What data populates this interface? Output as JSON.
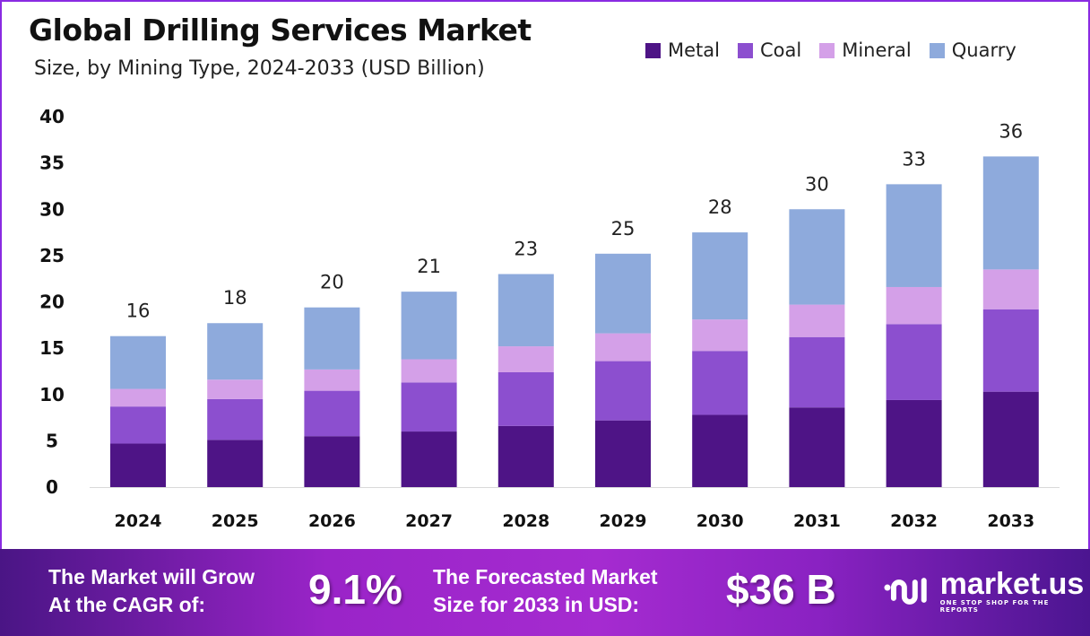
{
  "chart_data": {
    "type": "bar",
    "stacked": true,
    "title": "Global Drilling Services Market",
    "subtitle": "Size, by Mining Type, 2024-2033 (USD Billion)",
    "categories": [
      "2024",
      "2025",
      "2026",
      "2027",
      "2028",
      "2029",
      "2030",
      "2031",
      "2032",
      "2033"
    ],
    "series": [
      {
        "name": "Metal",
        "color": "#4e1486",
        "values": [
          4.7,
          5.1,
          5.5,
          6.0,
          6.6,
          7.2,
          7.8,
          8.6,
          9.4,
          10.3
        ]
      },
      {
        "name": "Coal",
        "color": "#8c4fcf",
        "values": [
          4.0,
          4.4,
          4.9,
          5.3,
          5.8,
          6.4,
          6.9,
          7.6,
          8.2,
          8.9
        ]
      },
      {
        "name": "Mineral",
        "color": "#d4a0e8",
        "values": [
          1.9,
          2.1,
          2.3,
          2.5,
          2.8,
          3.0,
          3.4,
          3.5,
          4.0,
          4.3
        ]
      },
      {
        "name": "Quarry",
        "color": "#8eaadc",
        "values": [
          5.7,
          6.1,
          6.7,
          7.3,
          7.8,
          8.6,
          9.4,
          10.3,
          11.1,
          12.2
        ]
      }
    ],
    "totals": [
      "16",
      "18",
      "20",
      "21",
      "23",
      "25",
      "28",
      "30",
      "33",
      "36"
    ],
    "ylim": [
      0,
      40
    ],
    "yticks": [
      0,
      5,
      10,
      15,
      20,
      25,
      30,
      35,
      40
    ],
    "grid": false,
    "legend_position": "top-right"
  },
  "footer": {
    "cagr_label_1": "The Market will Grow",
    "cagr_label_2": "At the CAGR of:",
    "cagr_value": "9.1%",
    "forecast_label_1": "The Forecasted Market",
    "forecast_label_2": "Size for 2033 in USD:",
    "forecast_value": "$36 B",
    "logo_name": "market.us",
    "logo_tagline": "ONE STOP SHOP FOR THE REPORTS"
  }
}
